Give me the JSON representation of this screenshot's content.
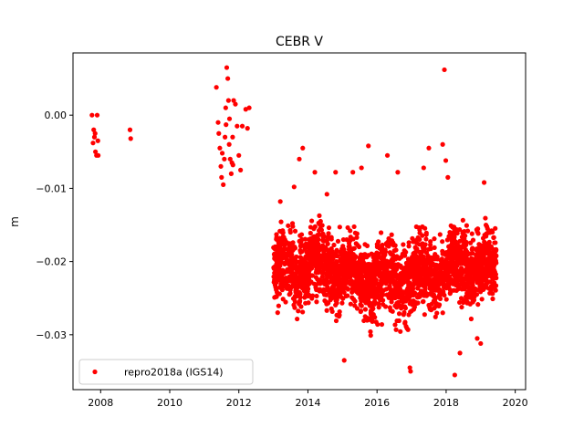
{
  "chart_data": {
    "type": "scatter",
    "title": "CEBR V",
    "xlabel": "",
    "ylabel": "m",
    "xlim": [
      2007.2,
      2020.3
    ],
    "ylim": [
      -0.0375,
      0.0085
    ],
    "xticks": [
      2008,
      2010,
      2012,
      2014,
      2016,
      2018,
      2020
    ],
    "xtick_labels": [
      "2008",
      "2010",
      "2012",
      "2014",
      "2016",
      "2018",
      "2020"
    ],
    "yticks": [
      0.0,
      -0.01,
      -0.02,
      -0.03
    ],
    "ytick_labels": [
      "0.00",
      "−0.01",
      "−0.02",
      "−0.03"
    ],
    "grid": false,
    "legend_position": "lower-left",
    "series": [
      {
        "name": "repro2018a (IGS14)",
        "color": "#ff0000",
        "marker": "circle",
        "x": [
          2007.75,
          2007.8,
          2007.82,
          2007.85,
          2007.88,
          2007.9,
          2007.92,
          2007.93,
          2007.78,
          2007.84,
          2008.85,
          2008.87,
          2011.35,
          2011.4,
          2011.45,
          2011.48,
          2011.5,
          2011.55,
          2011.58,
          2011.6,
          2011.62,
          2011.65,
          2011.68,
          2011.7,
          2011.72,
          2011.75,
          2011.78,
          2011.8,
          2011.82,
          2011.85,
          2011.9,
          2011.95,
          2012.0,
          2012.05,
          2012.1,
          2012.2,
          2012.25,
          2012.3,
          2011.42,
          2011.52,
          2011.63,
          2011.73,
          2011.83
        ],
        "y": [
          0.0,
          -0.002,
          -0.003,
          -0.005,
          -0.0055,
          0.0,
          -0.0035,
          -0.0055,
          -0.0038,
          -0.0025,
          -0.002,
          -0.0032,
          0.0038,
          -0.001,
          -0.0045,
          -0.007,
          -0.0085,
          -0.0095,
          -0.006,
          -0.003,
          0.001,
          0.0065,
          0.005,
          0.002,
          -0.004,
          -0.006,
          -0.008,
          -0.0065,
          -0.003,
          0.002,
          0.0015,
          -0.0015,
          -0.0055,
          -0.0075,
          -0.0015,
          0.0008,
          -0.0018,
          0.001,
          -0.0025,
          -0.0052,
          -0.0013,
          -0.0005,
          -0.0068
        ]
      }
    ],
    "dense_clusters": [
      {
        "xmin": 2013.0,
        "xmax": 2019.45,
        "center": -0.0215,
        "spread": 0.0045,
        "count": 2600,
        "seed": 7
      }
    ],
    "outliers": [
      {
        "x": 2013.2,
        "y": -0.0118
      },
      {
        "x": 2013.6,
        "y": -0.0098
      },
      {
        "x": 2013.75,
        "y": -0.006
      },
      {
        "x": 2013.85,
        "y": -0.0045
      },
      {
        "x": 2014.2,
        "y": -0.0078
      },
      {
        "x": 2014.25,
        "y": -0.0255
      },
      {
        "x": 2014.8,
        "y": -0.0078
      },
      {
        "x": 2015.05,
        "y": -0.0335
      },
      {
        "x": 2015.3,
        "y": -0.0078
      },
      {
        "x": 2015.55,
        "y": -0.0072
      },
      {
        "x": 2015.75,
        "y": -0.0042
      },
      {
        "x": 2016.3,
        "y": -0.0055
      },
      {
        "x": 2016.95,
        "y": -0.0345
      },
      {
        "x": 2016.97,
        "y": -0.035
      },
      {
        "x": 2017.5,
        "y": -0.0045
      },
      {
        "x": 2017.9,
        "y": -0.004
      },
      {
        "x": 2017.95,
        "y": 0.0062
      },
      {
        "x": 2017.99,
        "y": -0.0062
      },
      {
        "x": 2018.05,
        "y": -0.0085
      },
      {
        "x": 2018.25,
        "y": -0.0355
      },
      {
        "x": 2018.4,
        "y": -0.0325
      },
      {
        "x": 2018.9,
        "y": -0.0305
      },
      {
        "x": 2019.0,
        "y": -0.0312
      },
      {
        "x": 2019.1,
        "y": -0.0092
      },
      {
        "x": 2017.35,
        "y": -0.0072
      },
      {
        "x": 2016.6,
        "y": -0.0078
      },
      {
        "x": 2014.55,
        "y": -0.0108
      }
    ]
  }
}
